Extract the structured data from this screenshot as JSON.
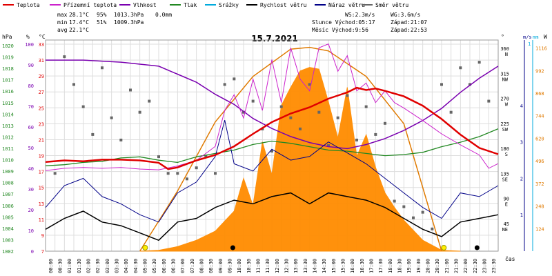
{
  "chart_data": {
    "type": "line",
    "title": "15.7.2021",
    "legend": [
      {
        "label": "Teplota",
        "color": "#e00000"
      },
      {
        "label": "Přízemní teplota",
        "color": "#cc22cc"
      },
      {
        "label": "Vlhkost",
        "color": "#7a00b0"
      },
      {
        "label": "Tlak",
        "color": "#228822"
      },
      {
        "label": "Srážky",
        "color": "#00aadd"
      },
      {
        "label": "Rychlost větru",
        "color": "#000000"
      },
      {
        "label": "Náraz větru",
        "color": "#000088"
      },
      {
        "label": "Směr větru",
        "color": "#666666"
      }
    ],
    "stats": {
      "max": {
        "label": "max",
        "temp": "28.1°C",
        "hum": "95%",
        "press": "1013.3hPa",
        "rain": "0.0mm"
      },
      "min": {
        "label": "min",
        "temp": "17.4°C",
        "hum": "51%",
        "press": "1009.3hPa"
      },
      "avg": {
        "label": "avg",
        "temp": "22.1°C"
      },
      "ws": "WS:2.3m/s",
      "wg": "WG:3.6m/s",
      "sun": "Slunce Východ:05:17",
      "sunset": "Západ:21:07",
      "moon": "Měsíc Východ:9:56",
      "moonset": "Západ:22:53"
    },
    "axes": {
      "hpa_label": "hPa",
      "pct_label": "%",
      "c_label": "°C",
      "deg_label": "°",
      "ms_label": "m/s",
      "mm_label": "mm",
      "w_label": "W",
      "x_label": "čas",
      "hpa_ticks": [
        "1020",
        "1019",
        "1018",
        "1017",
        "1016",
        "1015",
        "1014",
        "1013",
        "1012",
        "1011",
        "1010",
        "1009",
        "1008",
        "1007",
        "1006",
        "1005",
        "1004",
        "1003",
        "1002"
      ],
      "pct_ticks": [
        "100",
        "90",
        "80",
        "70",
        "60",
        "50",
        "40",
        "30",
        "20",
        "10",
        "0"
      ],
      "c_ticks": [
        "33",
        "31",
        "29",
        "27",
        "25",
        "23",
        "21",
        "19",
        "17",
        "15",
        "13",
        "11",
        "9",
        "7"
      ],
      "dir_ticks": [
        {
          "deg": "360",
          "dir": "N"
        },
        {
          "deg": "315",
          "dir": "NW"
        },
        {
          "deg": "270",
          "dir": "W"
        },
        {
          "deg": "225",
          "dir": "SW"
        },
        {
          "deg": "180",
          "dir": "S"
        },
        {
          "deg": "135",
          "dir": "SE"
        },
        {
          "deg": "90",
          "dir": "E"
        },
        {
          "deg": "45",
          "dir": "NE"
        }
      ],
      "ms_ticks": [
        "4",
        "3",
        "2",
        "1"
      ],
      "mm_ticks": [
        "1"
      ],
      "w_ticks": [
        "1116",
        "992",
        "868",
        "744",
        "620",
        "496",
        "372",
        "248",
        "124"
      ],
      "x_ticks": [
        "00:00",
        "00:30",
        "01:00",
        "01:30",
        "02:00",
        "02:30",
        "03:00",
        "03:30",
        "04:00",
        "04:30",
        "05:00",
        "05:30",
        "06:00",
        "06:30",
        "07:00",
        "07:30",
        "08:00",
        "08:30",
        "09:00",
        "09:30",
        "10:00",
        "10:30",
        "11:00",
        "11:30",
        "12:00",
        "12:30",
        "13:00",
        "13:30",
        "14:00",
        "14:30",
        "15:00",
        "15:30",
        "16:00",
        "16:30",
        "17:00",
        "17:30",
        "18:00",
        "18:30",
        "19:00",
        "19:30",
        "20:00",
        "20:30",
        "21:00",
        "21:30",
        "22:00",
        "22:30",
        "23:00",
        "23:30"
      ]
    },
    "series": {
      "temperature": [
        [
          0,
          18.4
        ],
        [
          1,
          18.6
        ],
        [
          2,
          18.5
        ],
        [
          3,
          18.7
        ],
        [
          4,
          18.7
        ],
        [
          5,
          18.6
        ],
        [
          6,
          18.3
        ],
        [
          6.5,
          17.5
        ],
        [
          7,
          17.7
        ],
        [
          8,
          18.6
        ],
        [
          9,
          19.3
        ],
        [
          10,
          20.4
        ],
        [
          11,
          22.0
        ],
        [
          12,
          23.5
        ],
        [
          13,
          24.6
        ],
        [
          14,
          25.4
        ],
        [
          15,
          26.5
        ],
        [
          16,
          27.3
        ],
        [
          16.5,
          27.9
        ],
        [
          17,
          27.6
        ],
        [
          17.5,
          27.8
        ],
        [
          18,
          27.5
        ],
        [
          19,
          26.8
        ],
        [
          20,
          25.6
        ],
        [
          21,
          23.9
        ],
        [
          22,
          21.9
        ],
        [
          23,
          20.2
        ],
        [
          24,
          19.4
        ]
      ],
      "ground_temp": [
        [
          0,
          17.3
        ],
        [
          1,
          17.6
        ],
        [
          2,
          17.7
        ],
        [
          3,
          17.6
        ],
        [
          4,
          17.7
        ],
        [
          5,
          17.5
        ],
        [
          6,
          17.4
        ],
        [
          7,
          17.9
        ],
        [
          8,
          18.6
        ],
        [
          9,
          20.4
        ],
        [
          9.5,
          25
        ],
        [
          10,
          27
        ],
        [
          10.5,
          24
        ],
        [
          11,
          29
        ],
        [
          11.5,
          25
        ],
        [
          12,
          31.5
        ],
        [
          12.5,
          26
        ],
        [
          13,
          33
        ],
        [
          13.5,
          29
        ],
        [
          14,
          27.5
        ],
        [
          14.5,
          33
        ],
        [
          15,
          33.5
        ],
        [
          15.5,
          30
        ],
        [
          16,
          32
        ],
        [
          16.5,
          27.5
        ],
        [
          17,
          28.5
        ],
        [
          17.5,
          26
        ],
        [
          18,
          27.5
        ],
        [
          18.5,
          26
        ],
        [
          19,
          25.3
        ],
        [
          20,
          23.7
        ],
        [
          21,
          22.0
        ],
        [
          22,
          20.6
        ],
        [
          23,
          19.3
        ],
        [
          23.5,
          17.6
        ],
        [
          24,
          18.2
        ]
      ],
      "humidity": [
        [
          0,
          95
        ],
        [
          2,
          95
        ],
        [
          4,
          94
        ],
        [
          6,
          92
        ],
        [
          7,
          88
        ],
        [
          8,
          84
        ],
        [
          9,
          78
        ],
        [
          10,
          73
        ],
        [
          11,
          66
        ],
        [
          12,
          61
        ],
        [
          13,
          57
        ],
        [
          14,
          54
        ],
        [
          15,
          52
        ],
        [
          16,
          51
        ],
        [
          17,
          53
        ],
        [
          18,
          56
        ],
        [
          19,
          60
        ],
        [
          20,
          65
        ],
        [
          21,
          71
        ],
        [
          22,
          79
        ],
        [
          23,
          86
        ],
        [
          24,
          92
        ]
      ],
      "pressure": [
        [
          0,
          1009.6
        ],
        [
          1,
          1009.7
        ],
        [
          2,
          1009.9
        ],
        [
          3,
          1010.0
        ],
        [
          4,
          1010.3
        ],
        [
          5,
          1010.4
        ],
        [
          6,
          1010.1
        ],
        [
          7,
          1009.9
        ],
        [
          8,
          1010.4
        ],
        [
          9,
          1010.7
        ],
        [
          10,
          1011.0
        ],
        [
          11,
          1011.5
        ],
        [
          12,
          1011.8
        ],
        [
          13,
          1011.6
        ],
        [
          14,
          1011.3
        ],
        [
          15,
          1011.0
        ],
        [
          16,
          1010.9
        ],
        [
          17,
          1010.7
        ],
        [
          18,
          1010.5
        ],
        [
          19,
          1010.6
        ],
        [
          20,
          1010.8
        ],
        [
          21,
          1011.3
        ],
        [
          22,
          1011.7
        ],
        [
          23,
          1012.2
        ],
        [
          24,
          1012.9
        ]
      ],
      "solar_W": [
        [
          5,
          0
        ],
        [
          6,
          5
        ],
        [
          7,
          25
        ],
        [
          8,
          60
        ],
        [
          9,
          110
        ],
        [
          10,
          220
        ],
        [
          10.5,
          400
        ],
        [
          11,
          250
        ],
        [
          11.5,
          600
        ],
        [
          12,
          420
        ],
        [
          12.5,
          800
        ],
        [
          13,
          900
        ],
        [
          13.5,
          990
        ],
        [
          14,
          1010
        ],
        [
          14.5,
          1000
        ],
        [
          15,
          820
        ],
        [
          15.5,
          620
        ],
        [
          16,
          900
        ],
        [
          16.5,
          520
        ],
        [
          17,
          640
        ],
        [
          17.5,
          460
        ],
        [
          18,
          320
        ],
        [
          18.5,
          240
        ],
        [
          19,
          170
        ],
        [
          20,
          60
        ],
        [
          21,
          5
        ],
        [
          22,
          0
        ]
      ],
      "theoretical_solar_W": [
        [
          5,
          0
        ],
        [
          7,
          330
        ],
        [
          9,
          710
        ],
        [
          11,
          960
        ],
        [
          13,
          1110
        ],
        [
          14,
          1120
        ],
        [
          15,
          1100
        ],
        [
          17,
          960
        ],
        [
          19,
          700
        ],
        [
          21,
          0
        ]
      ],
      "wind_speed_ms": [
        [
          0,
          0.6
        ],
        [
          1,
          0.9
        ],
        [
          2,
          1.1
        ],
        [
          3,
          0.8
        ],
        [
          4,
          0.7
        ],
        [
          5,
          0.5
        ],
        [
          6,
          0.3
        ],
        [
          7,
          0.8
        ],
        [
          8,
          0.9
        ],
        [
          9,
          1.2
        ],
        [
          10,
          1.4
        ],
        [
          11,
          1.3
        ],
        [
          12,
          1.5
        ],
        [
          13,
          1.6
        ],
        [
          14,
          1.3
        ],
        [
          15,
          1.6
        ],
        [
          16,
          1.5
        ],
        [
          17,
          1.4
        ],
        [
          18,
          1.2
        ],
        [
          19,
          0.9
        ],
        [
          20,
          0.6
        ],
        [
          21,
          0.4
        ],
        [
          22,
          0.8
        ],
        [
          23,
          0.9
        ],
        [
          24,
          1.0
        ]
      ],
      "wind_gust_ms": [
        [
          0,
          1.2
        ],
        [
          1,
          1.8
        ],
        [
          2,
          2.0
        ],
        [
          3,
          1.5
        ],
        [
          4,
          1.3
        ],
        [
          5,
          1.0
        ],
        [
          6,
          0.8
        ],
        [
          7,
          1.6
        ],
        [
          8,
          1.9
        ],
        [
          9,
          2.6
        ],
        [
          9.5,
          3.6
        ],
        [
          10,
          2.4
        ],
        [
          11,
          2.2
        ],
        [
          12,
          2.8
        ],
        [
          13,
          2.5
        ],
        [
          14,
          2.6
        ],
        [
          15,
          3.0
        ],
        [
          16,
          2.7
        ],
        [
          17,
          2.4
        ],
        [
          18,
          2.0
        ],
        [
          19,
          1.6
        ],
        [
          20,
          1.2
        ],
        [
          21,
          0.9
        ],
        [
          22,
          1.6
        ],
        [
          23,
          1.5
        ],
        [
          24,
          1.8
        ]
      ],
      "wind_dir_deg": [
        [
          0.5,
          140
        ],
        [
          1,
          350
        ],
        [
          1.5,
          300
        ],
        [
          2,
          260
        ],
        [
          2.5,
          210
        ],
        [
          3,
          330
        ],
        [
          3.5,
          240
        ],
        [
          4,
          200
        ],
        [
          4.5,
          290
        ],
        [
          5,
          250
        ],
        [
          5.5,
          270
        ],
        [
          6,
          170
        ],
        [
          6.5,
          140
        ],
        [
          7,
          140
        ],
        [
          7.5,
          130
        ],
        [
          8,
          150
        ],
        [
          8.5,
          170
        ],
        [
          9,
          140
        ],
        [
          9.5,
          300
        ],
        [
          10,
          310
        ],
        [
          10.5,
          250
        ],
        [
          11,
          270
        ],
        [
          11.5,
          220
        ],
        [
          12,
          180
        ],
        [
          12.5,
          260
        ],
        [
          13,
          240
        ],
        [
          13.5,
          220
        ],
        [
          14,
          300
        ],
        [
          14.5,
          250
        ],
        [
          15,
          190
        ],
        [
          15.5,
          240
        ],
        [
          16,
          280
        ],
        [
          16.5,
          200
        ],
        [
          17,
          260
        ],
        [
          17.5,
          210
        ],
        [
          18,
          230
        ],
        [
          18.5,
          90
        ],
        [
          19,
          80
        ],
        [
          19.5,
          60
        ],
        [
          20,
          70
        ],
        [
          20.5,
          40
        ],
        [
          21,
          300
        ],
        [
          21.5,
          250
        ],
        [
          22,
          330
        ],
        [
          22.5,
          300
        ],
        [
          23,
          340
        ],
        [
          23.5,
          270
        ]
      ]
    },
    "ranges": {
      "hours": [
        0,
        24
      ],
      "temp": [
        7,
        34
      ],
      "hpa": [
        1002,
        1020.8
      ],
      "pct": [
        0,
        105
      ],
      "deg": [
        0,
        380
      ],
      "ms": [
        0,
        5.8
      ],
      "W": [
        0,
        1160
      ]
    },
    "markers": {
      "sunrise": 5.28,
      "sunset": 21.12,
      "moonrise": 9.93,
      "moonset": 22.88
    }
  }
}
